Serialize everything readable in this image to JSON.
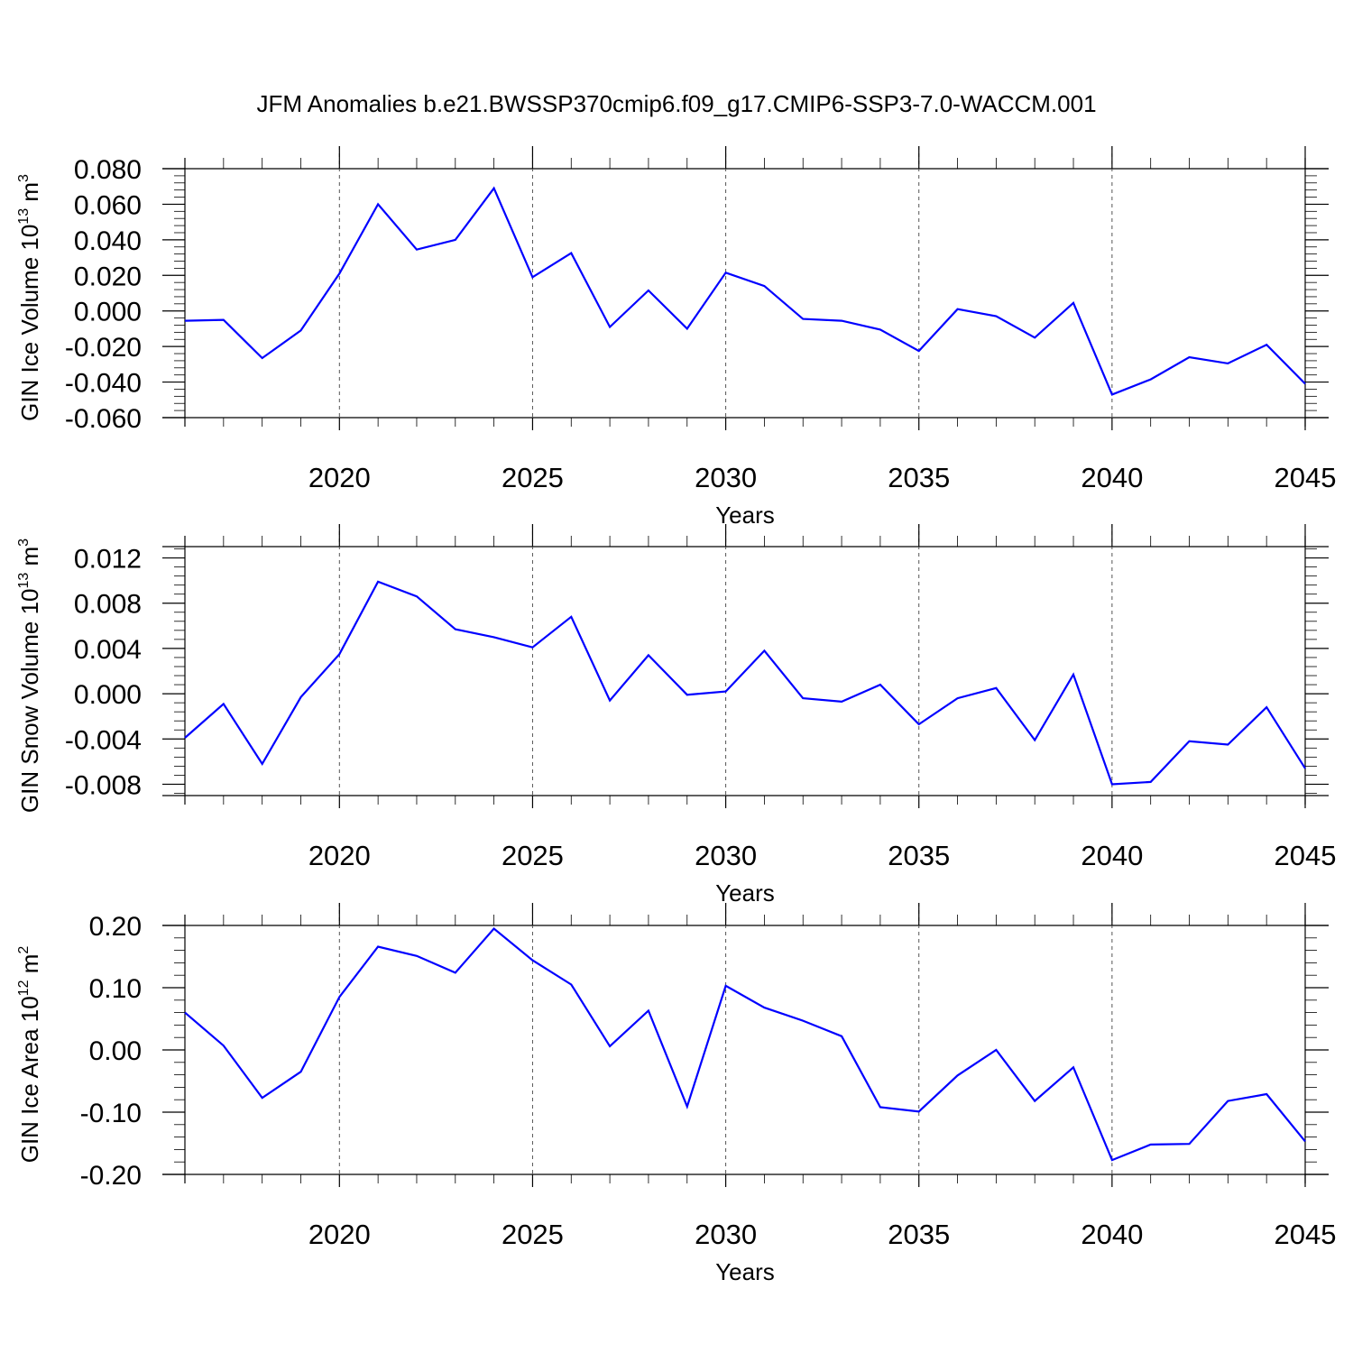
{
  "chart_data": {
    "title": "JFM Anomalies b.e21.BWSSP370cmip6.f09_g17.CMIP6-SSP3-7.0-WACCM.001",
    "type": "line",
    "panels": [
      {
        "type": "line",
        "xlabel": "Years",
        "ylabel": "GIN Ice Volume",
        "yunit": {
          "base": "10",
          "exp": "13",
          "unit": "m",
          "unit_exp": "3"
        },
        "xlim": [
          2016,
          2045
        ],
        "ylim": [
          -0.06,
          0.08
        ],
        "x_ticks": [
          2020,
          2025,
          2030,
          2035,
          2040,
          2045
        ],
        "x_tick_labels": [
          "2020",
          "2025",
          "2030",
          "2035",
          "2040",
          "2045"
        ],
        "y_ticks": [
          -0.06,
          -0.04,
          -0.02,
          0.0,
          0.02,
          0.04,
          0.06,
          0.08
        ],
        "y_tick_labels": [
          "-0.060",
          "-0.040",
          "-0.020",
          "0.000",
          "0.020",
          "0.040",
          "0.060",
          "0.080"
        ],
        "grid": "vertical dashed at labeled years",
        "series": [
          {
            "color": "#0000ff",
            "x": [
              2016,
              2017,
              2018,
              2019,
              2020,
              2021,
              2022,
              2023,
              2024,
              2025,
              2026,
              2027,
              2028,
              2029,
              2030,
              2031,
              2032,
              2033,
              2034,
              2035,
              2036,
              2037,
              2038,
              2039,
              2040,
              2041,
              2042,
              2043,
              2044,
              2045
            ],
            "values": [
              -0.0055,
              -0.005,
              -0.0265,
              -0.011,
              0.021,
              0.06,
              0.0345,
              0.04,
              0.069,
              0.019,
              0.0325,
              -0.009,
              0.0115,
              -0.01,
              0.0215,
              0.014,
              -0.0045,
              -0.0055,
              -0.0105,
              -0.0225,
              0.001,
              -0.003,
              -0.015,
              0.0045,
              -0.047,
              -0.0385,
              -0.026,
              -0.0295,
              -0.019,
              -0.041
            ]
          }
        ]
      },
      {
        "type": "line",
        "xlabel": "Years",
        "ylabel": "GIN Snow Volume",
        "yunit": {
          "base": "10",
          "exp": "13",
          "unit": "m",
          "unit_exp": "3"
        },
        "xlim": [
          2016,
          2045
        ],
        "ylim": [
          -0.009,
          0.013
        ],
        "x_ticks": [
          2020,
          2025,
          2030,
          2035,
          2040,
          2045
        ],
        "x_tick_labels": [
          "2020",
          "2025",
          "2030",
          "2035",
          "2040",
          "2045"
        ],
        "y_ticks": [
          -0.008,
          -0.004,
          0.0,
          0.004,
          0.008,
          0.012
        ],
        "y_tick_labels": [
          "-0.008",
          "-0.004",
          "0.000",
          "0.004",
          "0.008",
          "0.012"
        ],
        "grid": "vertical dashed at labeled years",
        "series": [
          {
            "color": "#0000ff",
            "x": [
              2016,
              2017,
              2018,
              2019,
              2020,
              2021,
              2022,
              2023,
              2024,
              2025,
              2026,
              2027,
              2028,
              2029,
              2030,
              2031,
              2032,
              2033,
              2034,
              2035,
              2036,
              2037,
              2038,
              2039,
              2040,
              2041,
              2042,
              2043,
              2044,
              2045
            ],
            "values": [
              -0.0039,
              -0.0009,
              -0.0062,
              -0.0003,
              0.0035,
              0.0099,
              0.0086,
              0.0057,
              0.005,
              0.0041,
              0.0068,
              -0.0006,
              0.0034,
              -0.0001,
              0.0002,
              0.0038,
              -0.0004,
              -0.0007,
              0.0008,
              -0.0027,
              -0.0004,
              0.0005,
              -0.0041,
              0.0017,
              -0.008,
              -0.0078,
              -0.0042,
              -0.0045,
              -0.0012,
              -0.0066
            ]
          }
        ]
      },
      {
        "type": "line",
        "xlabel": "Years",
        "ylabel": "GIN Ice Area",
        "yunit": {
          "base": "10",
          "exp": "12",
          "unit": "m",
          "unit_exp": "2"
        },
        "xlim": [
          2016,
          2045
        ],
        "ylim": [
          -0.2,
          0.2
        ],
        "x_ticks": [
          2020,
          2025,
          2030,
          2035,
          2040,
          2045
        ],
        "x_tick_labels": [
          "2020",
          "2025",
          "2030",
          "2035",
          "2040",
          "2045"
        ],
        "y_ticks": [
          -0.2,
          -0.1,
          0.0,
          0.1,
          0.2
        ],
        "y_tick_labels": [
          "-0.20",
          "-0.10",
          "0.00",
          "0.10",
          "0.20"
        ],
        "grid": "vertical dashed at labeled years",
        "series": [
          {
            "color": "#0000ff",
            "x": [
              2016,
              2017,
              2018,
              2019,
              2020,
              2021,
              2022,
              2023,
              2024,
              2025,
              2026,
              2027,
              2028,
              2029,
              2030,
              2031,
              2032,
              2033,
              2034,
              2035,
              2036,
              2037,
              2038,
              2039,
              2040,
              2041,
              2042,
              2043,
              2044,
              2045
            ],
            "values": [
              0.06,
              0.007,
              -0.077,
              -0.035,
              0.085,
              0.166,
              0.151,
              0.124,
              0.195,
              0.144,
              0.105,
              0.006,
              0.063,
              -0.091,
              0.103,
              0.068,
              0.047,
              0.022,
              -0.092,
              -0.099,
              -0.041,
              0.0,
              -0.082,
              -0.028,
              -0.177,
              -0.152,
              -0.151,
              -0.082,
              -0.071,
              -0.147
            ]
          }
        ]
      }
    ]
  }
}
